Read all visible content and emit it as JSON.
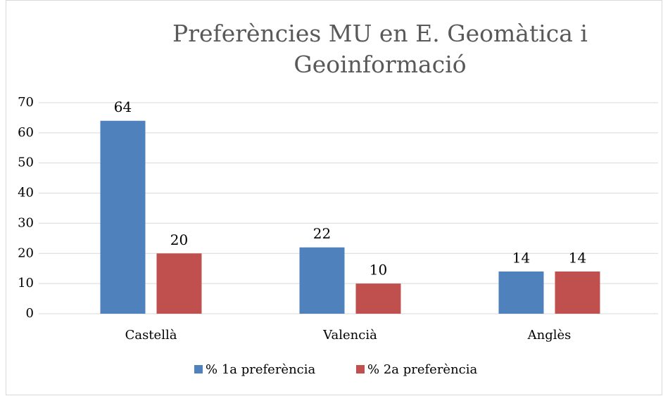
{
  "chart_data": {
    "type": "bar",
    "title": "Preferències MU en E. Geomàtica i Geoinformació",
    "categories": [
      "Castellà",
      "Valencià",
      "Anglès"
    ],
    "series": [
      {
        "name": "% 1a preferència",
        "color": "#4f81bd",
        "values": [
          64,
          22,
          14
        ]
      },
      {
        "name": "% 2a preferència",
        "color": "#c0504d",
        "values": [
          20,
          10,
          14
        ]
      }
    ],
    "ylim": [
      0,
      70
    ],
    "yticks": [
      0,
      10,
      20,
      30,
      40,
      50,
      60,
      70
    ],
    "grid": true,
    "data_labels": true,
    "legend": "bottom"
  }
}
